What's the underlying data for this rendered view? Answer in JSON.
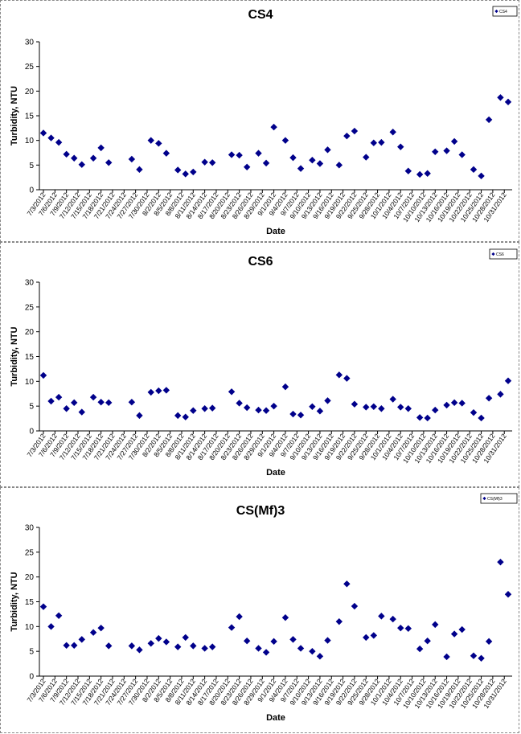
{
  "colors": {
    "marker": "#00008B",
    "axis": "#000000",
    "panel_border": "#888888"
  },
  "chart_data": [
    {
      "type": "scatter",
      "title": "CS4",
      "xlabel": "Date",
      "ylabel": "Turbidity, NTU",
      "ylim": [
        0,
        30
      ],
      "yticks": [
        0,
        5,
        10,
        15,
        20,
        25,
        30
      ],
      "legend": {
        "entry": "CS4",
        "placement": "top-right"
      },
      "grid": false,
      "x_tick_labels": [
        "7/3/2012",
        "7/6/2012",
        "7/9/2012",
        "7/12/2012",
        "7/15/2012",
        "7/18/2012",
        "7/21/2012",
        "7/24/2012",
        "7/27/2012",
        "7/30/2012",
        "8/2/2012",
        "8/5/2012",
        "8/8/2012",
        "8/11/2012",
        "8/14/2012",
        "8/17/2012",
        "8/20/2012",
        "8/23/2012",
        "8/26/2012",
        "8/29/2012",
        "9/1/2012",
        "9/4/2012",
        "9/7/2012",
        "9/10/2012",
        "9/13/2012",
        "9/16/2012",
        "9/19/2012",
        "9/22/2012",
        "9/25/2012",
        "9/28/2012",
        "10/1/2012",
        "10/4/2012",
        "10/7/2012",
        "10/10/2012",
        "10/13/2012",
        "10/16/2012",
        "10/19/2012",
        "10/22/2012",
        "10/25/2012",
        "10/28/2012",
        "10/31/2012"
      ],
      "points": [
        [
          "7/3/2012",
          11.5
        ],
        [
          "7/5/2012",
          10.5
        ],
        [
          "7/7/2012",
          9.6
        ],
        [
          "7/9/2012",
          7.2
        ],
        [
          "7/11/2012",
          6.4
        ],
        [
          "7/13/2012",
          5.1
        ],
        [
          "7/16/2012",
          6.4
        ],
        [
          "7/18/2012",
          8.5
        ],
        [
          "7/20/2012",
          5.5
        ],
        [
          "7/26/2012",
          6.2
        ],
        [
          "7/28/2012",
          4.1
        ],
        [
          "7/31/2012",
          10.0
        ],
        [
          "8/2/2012",
          9.4
        ],
        [
          "8/4/2012",
          7.4
        ],
        [
          "8/7/2012",
          4.0
        ],
        [
          "8/9/2012",
          3.2
        ],
        [
          "8/11/2012",
          3.6
        ],
        [
          "8/14/2012",
          5.6
        ],
        [
          "8/16/2012",
          5.5
        ],
        [
          "8/21/2012",
          7.1
        ],
        [
          "8/23/2012",
          7.0
        ],
        [
          "8/25/2012",
          4.6
        ],
        [
          "8/28/2012",
          7.4
        ],
        [
          "8/30/2012",
          5.4
        ],
        [
          "9/1/2012",
          12.7
        ],
        [
          "9/4/2012",
          10.0
        ],
        [
          "9/6/2012",
          6.5
        ],
        [
          "9/8/2012",
          4.3
        ],
        [
          "9/11/2012",
          6.0
        ],
        [
          "9/13/2012",
          5.3
        ],
        [
          "9/15/2012",
          8.1
        ],
        [
          "9/18/2012",
          5.0
        ],
        [
          "9/20/2012",
          10.9
        ],
        [
          "9/22/2012",
          11.9
        ],
        [
          "9/25/2012",
          6.6
        ],
        [
          "9/27/2012",
          9.5
        ],
        [
          "9/29/2012",
          9.6
        ],
        [
          "10/2/2012",
          11.7
        ],
        [
          "10/4/2012",
          8.7
        ],
        [
          "10/6/2012",
          3.8
        ],
        [
          "10/9/2012",
          3.1
        ],
        [
          "10/11/2012",
          3.3
        ],
        [
          "10/13/2012",
          7.7
        ],
        [
          "10/16/2012",
          7.9
        ],
        [
          "10/18/2012",
          9.8
        ],
        [
          "10/20/2012",
          7.1
        ],
        [
          "10/23/2012",
          4.1
        ],
        [
          "10/25/2012",
          2.8
        ],
        [
          "10/27/2012",
          14.2
        ],
        [
          "10/30/2012",
          18.7
        ],
        [
          "11/1/2012",
          17.8
        ]
      ]
    },
    {
      "type": "scatter",
      "title": "CS6",
      "xlabel": "Date",
      "ylabel": "Turbidity, NTU",
      "ylim": [
        0,
        30
      ],
      "yticks": [
        0,
        5,
        10,
        15,
        20,
        25,
        30
      ],
      "legend": {
        "entry": "CS6",
        "placement": "top-right"
      },
      "grid": false,
      "x_tick_labels": [
        "7/3/2012",
        "7/6/2012",
        "7/9/2012",
        "7/12/2012",
        "7/15/2012",
        "7/18/2012",
        "7/21/2012",
        "7/24/2012",
        "7/27/2012",
        "7/30/2012",
        "8/2/2012",
        "8/5/2012",
        "8/8/2012",
        "8/11/2012",
        "8/14/2012",
        "8/17/2012",
        "8/20/2012",
        "8/23/2012",
        "8/26/2012",
        "8/29/2012",
        "9/1/2012",
        "9/4/2012",
        "9/7/2012",
        "9/10/2012",
        "9/13/2012",
        "9/16/2012",
        "9/19/2012",
        "9/22/2012",
        "9/25/2012",
        "9/28/2012",
        "10/1/2012",
        "10/4/2012",
        "10/7/2012",
        "10/10/2012",
        "10/13/2012",
        "10/16/2012",
        "10/19/2012",
        "10/22/2012",
        "10/25/2012",
        "10/28/2012",
        "10/31/2012"
      ],
      "points": [
        [
          "7/3/2012",
          11.2
        ],
        [
          "7/5/2012",
          6.0
        ],
        [
          "7/7/2012",
          6.8
        ],
        [
          "7/9/2012",
          4.5
        ],
        [
          "7/11/2012",
          5.7
        ],
        [
          "7/13/2012",
          3.8
        ],
        [
          "7/16/2012",
          6.8
        ],
        [
          "7/18/2012",
          5.8
        ],
        [
          "7/20/2012",
          5.7
        ],
        [
          "7/26/2012",
          5.8
        ],
        [
          "7/28/2012",
          3.1
        ],
        [
          "7/31/2012",
          7.8
        ],
        [
          "8/2/2012",
          8.1
        ],
        [
          "8/4/2012",
          8.2
        ],
        [
          "8/7/2012",
          3.1
        ],
        [
          "8/9/2012",
          2.8
        ],
        [
          "8/11/2012",
          4.1
        ],
        [
          "8/14/2012",
          4.5
        ],
        [
          "8/16/2012",
          4.6
        ],
        [
          "8/21/2012",
          7.9
        ],
        [
          "8/23/2012",
          5.6
        ],
        [
          "8/25/2012",
          4.7
        ],
        [
          "8/28/2012",
          4.2
        ],
        [
          "8/30/2012",
          4.1
        ],
        [
          "9/1/2012",
          5.0
        ],
        [
          "9/4/2012",
          8.9
        ],
        [
          "9/6/2012",
          3.4
        ],
        [
          "9/8/2012",
          3.2
        ],
        [
          "9/11/2012",
          4.9
        ],
        [
          "9/13/2012",
          4.0
        ],
        [
          "9/15/2012",
          6.1
        ],
        [
          "9/18/2012",
          11.3
        ],
        [
          "9/20/2012",
          10.6
        ],
        [
          "9/22/2012",
          5.4
        ],
        [
          "9/25/2012",
          4.8
        ],
        [
          "9/27/2012",
          4.9
        ],
        [
          "9/29/2012",
          4.5
        ],
        [
          "10/2/2012",
          6.4
        ],
        [
          "10/4/2012",
          4.8
        ],
        [
          "10/6/2012",
          4.5
        ],
        [
          "10/9/2012",
          2.7
        ],
        [
          "10/11/2012",
          2.6
        ],
        [
          "10/13/2012",
          4.2
        ],
        [
          "10/16/2012",
          5.2
        ],
        [
          "10/18/2012",
          5.7
        ],
        [
          "10/20/2012",
          5.6
        ],
        [
          "10/23/2012",
          3.7
        ],
        [
          "10/25/2012",
          2.6
        ],
        [
          "10/27/2012",
          6.6
        ],
        [
          "10/30/2012",
          7.4
        ],
        [
          "11/1/2012",
          10.1
        ]
      ]
    },
    {
      "type": "scatter",
      "title": "CS(Mf)3",
      "xlabel": "Date",
      "ylabel": "Turbidity, NTU",
      "ylim": [
        0,
        30
      ],
      "yticks": [
        0,
        5,
        10,
        15,
        20,
        25,
        30
      ],
      "legend": {
        "entry": "CS(Mf)3",
        "placement": "top-right"
      },
      "grid": false,
      "x_tick_labels": [
        "7/3/2012",
        "7/6/2012",
        "7/9/2012",
        "7/12/2012",
        "7/15/2012",
        "7/18/2012",
        "7/21/2012",
        "7/24/2012",
        "7/27/2012",
        "7/30/2012",
        "8/2/2012",
        "8/5/2012",
        "8/8/2012",
        "8/11/2012",
        "8/14/2012",
        "8/17/2012",
        "8/20/2012",
        "8/23/2012",
        "8/26/2012",
        "8/29/2012",
        "9/1/2012",
        "9/4/2012",
        "9/7/2012",
        "9/10/2012",
        "9/13/2012",
        "9/16/2012",
        "9/19/2012",
        "9/22/2012",
        "9/25/2012",
        "9/28/2012",
        "10/1/2012",
        "10/4/2012",
        "10/7/2012",
        "10/10/2012",
        "10/13/2012",
        "10/16/2012",
        "10/19/2012",
        "10/22/2012",
        "10/25/2012",
        "10/28/2012",
        "10/31/2012"
      ],
      "points": [
        [
          "7/3/2012",
          14.0
        ],
        [
          "7/5/2012",
          10.0
        ],
        [
          "7/7/2012",
          12.2
        ],
        [
          "7/9/2012",
          6.2
        ],
        [
          "7/11/2012",
          6.2
        ],
        [
          "7/13/2012",
          7.4
        ],
        [
          "7/16/2012",
          8.8
        ],
        [
          "7/18/2012",
          9.7
        ],
        [
          "7/20/2012",
          6.1
        ],
        [
          "7/26/2012",
          6.1
        ],
        [
          "7/28/2012",
          5.3
        ],
        [
          "7/31/2012",
          6.6
        ],
        [
          "8/2/2012",
          7.6
        ],
        [
          "8/4/2012",
          6.9
        ],
        [
          "8/7/2012",
          5.9
        ],
        [
          "8/9/2012",
          7.8
        ],
        [
          "8/11/2012",
          6.1
        ],
        [
          "8/14/2012",
          5.6
        ],
        [
          "8/16/2012",
          5.9
        ],
        [
          "8/21/2012",
          9.8
        ],
        [
          "8/23/2012",
          12.0
        ],
        [
          "8/25/2012",
          7.1
        ],
        [
          "8/28/2012",
          5.6
        ],
        [
          "8/30/2012",
          4.8
        ],
        [
          "9/1/2012",
          7.0
        ],
        [
          "9/4/2012",
          11.8
        ],
        [
          "9/6/2012",
          7.4
        ],
        [
          "9/8/2012",
          5.6
        ],
        [
          "9/11/2012",
          5.0
        ],
        [
          "9/13/2012",
          4.0
        ],
        [
          "9/15/2012",
          7.2
        ],
        [
          "9/18/2012",
          11.0
        ],
        [
          "9/20/2012",
          18.6
        ],
        [
          "9/22/2012",
          14.1
        ],
        [
          "9/25/2012",
          7.8
        ],
        [
          "9/27/2012",
          8.2
        ],
        [
          "9/29/2012",
          12.1
        ],
        [
          "10/2/2012",
          11.5
        ],
        [
          "10/4/2012",
          9.7
        ],
        [
          "10/6/2012",
          9.6
        ],
        [
          "10/9/2012",
          5.5
        ],
        [
          "10/11/2012",
          7.1
        ],
        [
          "10/13/2012",
          10.4
        ],
        [
          "10/16/2012",
          3.9
        ],
        [
          "10/18/2012",
          8.5
        ],
        [
          "10/20/2012",
          9.4
        ],
        [
          "10/23/2012",
          4.1
        ],
        [
          "10/25/2012",
          3.6
        ],
        [
          "10/27/2012",
          7.0
        ],
        [
          "10/30/2012",
          23.0
        ],
        [
          "11/1/2012",
          16.5
        ]
      ]
    }
  ]
}
